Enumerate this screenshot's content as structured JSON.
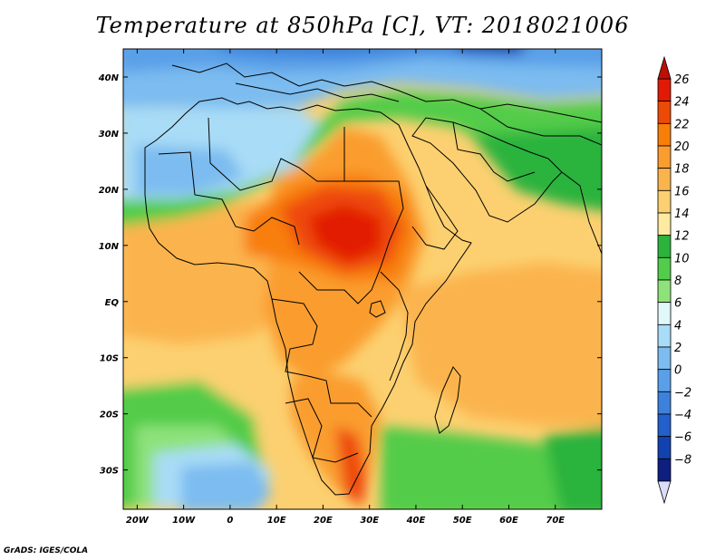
{
  "title": "Temperature at 850hPa [C], VT: 2018021006",
  "credit": "GrADS: IGES/COLA",
  "map": {
    "type": "filled-contour",
    "lon_range": [
      -23,
      80
    ],
    "lat_range": [
      -37,
      45
    ],
    "x_ticks": [
      {
        "lon": -20,
        "label": "20W"
      },
      {
        "lon": -10,
        "label": "10W"
      },
      {
        "lon": 0,
        "label": "0"
      },
      {
        "lon": 10,
        "label": "10E"
      },
      {
        "lon": 20,
        "label": "20E"
      },
      {
        "lon": 30,
        "label": "30E"
      },
      {
        "lon": 40,
        "label": "40E"
      },
      {
        "lon": 50,
        "label": "50E"
      },
      {
        "lon": 60,
        "label": "60E"
      },
      {
        "lon": 70,
        "label": "70E"
      }
    ],
    "y_ticks": [
      {
        "lat": 40,
        "label": "40N"
      },
      {
        "lat": 30,
        "label": "30N"
      },
      {
        "lat": 20,
        "label": "20N"
      },
      {
        "lat": 10,
        "label": "10N"
      },
      {
        "lat": 0,
        "label": "EQ"
      },
      {
        "lat": -10,
        "label": "10S"
      },
      {
        "lat": -20,
        "label": "20S"
      },
      {
        "lat": -30,
        "label": "30S"
      }
    ]
  },
  "colorbar": {
    "levels": [
      "26",
      "24",
      "22",
      "20",
      "18",
      "16",
      "14",
      "12",
      "10",
      "8",
      "6",
      "4",
      "2",
      "0",
      "−2",
      "−4",
      "−6",
      "−8"
    ],
    "colors": [
      "#e11a06",
      "#ee4a07",
      "#f87e08",
      "#fa9d2e",
      "#fbb44d",
      "#fcd070",
      "#feeaa0",
      "#2bb33c",
      "#52cc4a",
      "#8ee27a",
      "#e0f8fa",
      "#a9dcf6",
      "#7cbcf0",
      "#5aa0e8",
      "#3c82dc",
      "#2260cc",
      "#1242b0",
      "#0e1f80"
    ],
    "top_arrow_color": "#c00e04",
    "bottom_arrow_color": "#dcdcfa"
  }
}
